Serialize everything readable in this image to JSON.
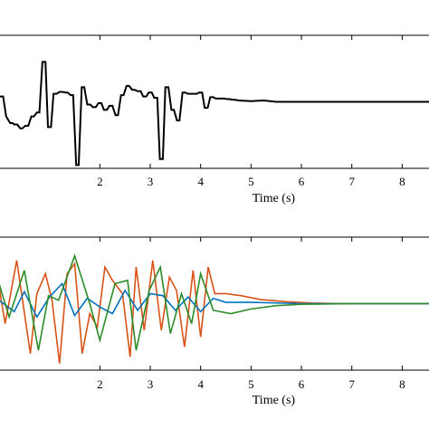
{
  "chart_data": [
    {
      "type": "line",
      "title": "",
      "xlabel": "Time (s)",
      "ylabel": "",
      "xlim": [
        0.0,
        8.55
      ],
      "ylim": [
        -1.0,
        1.0
      ],
      "xticks": [
        2,
        3,
        4,
        5,
        6,
        7,
        8
      ],
      "grid": false,
      "step": true,
      "series": [
        {
          "color": "#000000",
          "x": [
            0.0,
            0.08,
            0.14,
            0.22,
            0.27,
            0.3,
            0.36,
            0.42,
            0.46,
            0.52,
            0.58,
            0.64,
            0.69,
            0.75,
            0.8,
            0.86,
            0.92,
            0.97,
            1.03,
            1.08,
            1.14,
            1.2,
            1.25,
            1.31,
            1.36,
            1.42,
            1.47,
            1.53,
            1.58,
            1.64,
            1.69,
            1.75,
            1.81,
            1.86,
            1.92,
            1.97,
            2.03,
            2.08,
            2.14,
            2.19,
            2.25,
            2.31,
            2.36,
            2.42,
            2.47,
            2.53,
            2.58,
            2.64,
            2.69,
            2.75,
            2.81,
            2.86,
            2.92,
            2.97,
            3.03,
            3.08,
            3.14,
            3.19,
            3.25,
            3.3,
            3.36,
            3.42,
            3.47,
            3.53,
            3.58,
            3.64,
            3.69,
            3.75,
            3.8,
            3.86,
            3.92,
            3.97,
            4.03,
            4.08,
            4.14,
            4.19,
            4.25,
            4.3,
            4.36,
            4.42,
            4.47,
            4.53,
            4.58,
            4.64,
            4.69,
            4.75,
            5.0,
            5.25,
            5.5,
            5.75,
            6.0,
            6.5,
            7.0,
            7.5,
            8.0,
            8.55
          ],
          "y": [
            0.08,
            0.08,
            -0.22,
            -0.32,
            -0.32,
            -0.34,
            -0.34,
            -0.4,
            -0.4,
            -0.36,
            -0.36,
            -0.22,
            -0.22,
            -0.16,
            -0.16,
            0.6,
            0.6,
            -0.38,
            -0.38,
            0.12,
            0.12,
            0.15,
            0.15,
            0.14,
            0.14,
            0.1,
            0.1,
            -0.95,
            -0.95,
            0.22,
            0.22,
            -0.04,
            -0.04,
            -0.08,
            -0.08,
            -0.02,
            -0.02,
            -0.12,
            -0.12,
            -0.06,
            -0.06,
            -0.2,
            -0.2,
            0.1,
            0.1,
            0.24,
            0.24,
            0.18,
            0.18,
            0.16,
            0.16,
            0.08,
            0.08,
            0.14,
            0.14,
            0.06,
            0.06,
            -0.86,
            -0.86,
            0.22,
            0.22,
            -0.12,
            -0.12,
            -0.28,
            -0.28,
            0.14,
            0.14,
            0.12,
            0.12,
            0.12,
            0.12,
            0.14,
            0.14,
            -0.09,
            -0.09,
            0.07,
            0.07,
            0.05,
            0.05,
            0.05,
            0.05,
            0.04,
            0.04,
            0.03,
            0.03,
            0.02,
            0.01,
            0.02,
            0.0,
            0.0,
            0.0,
            0.0,
            0.0,
            0.0,
            0.0,
            0.0
          ]
        }
      ]
    },
    {
      "type": "line",
      "title": "",
      "xlabel": "Time (s)",
      "ylabel": "",
      "xlim": [
        0.0,
        8.55
      ],
      "ylim": [
        -1.0,
        1.0
      ],
      "xticks": [
        2,
        3,
        4,
        5,
        6,
        7,
        8
      ],
      "grid": false,
      "step": false,
      "series": [
        {
          "color": "#d95319",
          "x": [
            0.0,
            0.12,
            0.35,
            0.62,
            0.75,
            0.92,
            1.05,
            1.2,
            1.35,
            1.5,
            1.65,
            1.8,
            1.95,
            2.1,
            2.25,
            2.45,
            2.6,
            2.72,
            2.88,
            3.05,
            3.22,
            3.38,
            3.52,
            3.68,
            3.85,
            4.0,
            4.15,
            4.28,
            4.5,
            4.8,
            5.2,
            5.7,
            6.2,
            6.8,
            7.5,
            8.55
          ],
          "y": [
            0.25,
            -0.3,
            0.65,
            -0.75,
            0.15,
            0.45,
            0.05,
            -0.9,
            0.45,
            0.6,
            -0.75,
            -0.15,
            -0.35,
            0.55,
            0.35,
            0.15,
            -0.8,
            0.55,
            -0.4,
            0.65,
            -0.4,
            0.4,
            0.2,
            -0.65,
            0.5,
            -0.5,
            0.55,
            0.15,
            0.15,
            0.12,
            0.06,
            0.03,
            0.01,
            0.0,
            0.0,
            0.0
          ]
        },
        {
          "color": "#0072bd",
          "x": [
            0.0,
            0.3,
            0.5,
            0.75,
            1.0,
            1.25,
            1.5,
            1.75,
            2.0,
            2.25,
            2.5,
            2.75,
            3.0,
            3.25,
            3.5,
            3.75,
            4.0,
            4.25,
            4.5,
            5.0,
            5.5,
            6.0,
            6.5,
            7.0,
            7.5,
            8.0,
            8.55
          ],
          "y": [
            0.05,
            -0.12,
            0.18,
            -0.2,
            0.1,
            0.3,
            -0.18,
            0.08,
            -0.05,
            -0.15,
            0.2,
            -0.1,
            0.15,
            0.12,
            -0.1,
            0.1,
            -0.12,
            0.08,
            0.02,
            0.02,
            0.01,
            0.0,
            0.0,
            0.0,
            0.0,
            0.0,
            0.0
          ]
        },
        {
          "color": "#2a8c2a",
          "x": [
            0.0,
            0.2,
            0.5,
            0.78,
            0.98,
            1.18,
            1.5,
            1.8,
            2.0,
            2.3,
            2.55,
            2.72,
            2.98,
            3.2,
            3.4,
            3.62,
            3.82,
            4.0,
            4.25,
            4.6,
            5.0,
            5.5,
            6.0,
            7.0,
            8.55
          ],
          "y": [
            0.3,
            -0.2,
            0.5,
            -0.7,
            0.12,
            0.05,
            0.72,
            0.0,
            -0.55,
            0.3,
            0.35,
            -0.7,
            0.2,
            0.55,
            -0.45,
            0.15,
            -0.3,
            0.45,
            -0.1,
            -0.15,
            -0.08,
            -0.03,
            -0.01,
            0.0,
            0.0
          ]
        }
      ]
    }
  ]
}
